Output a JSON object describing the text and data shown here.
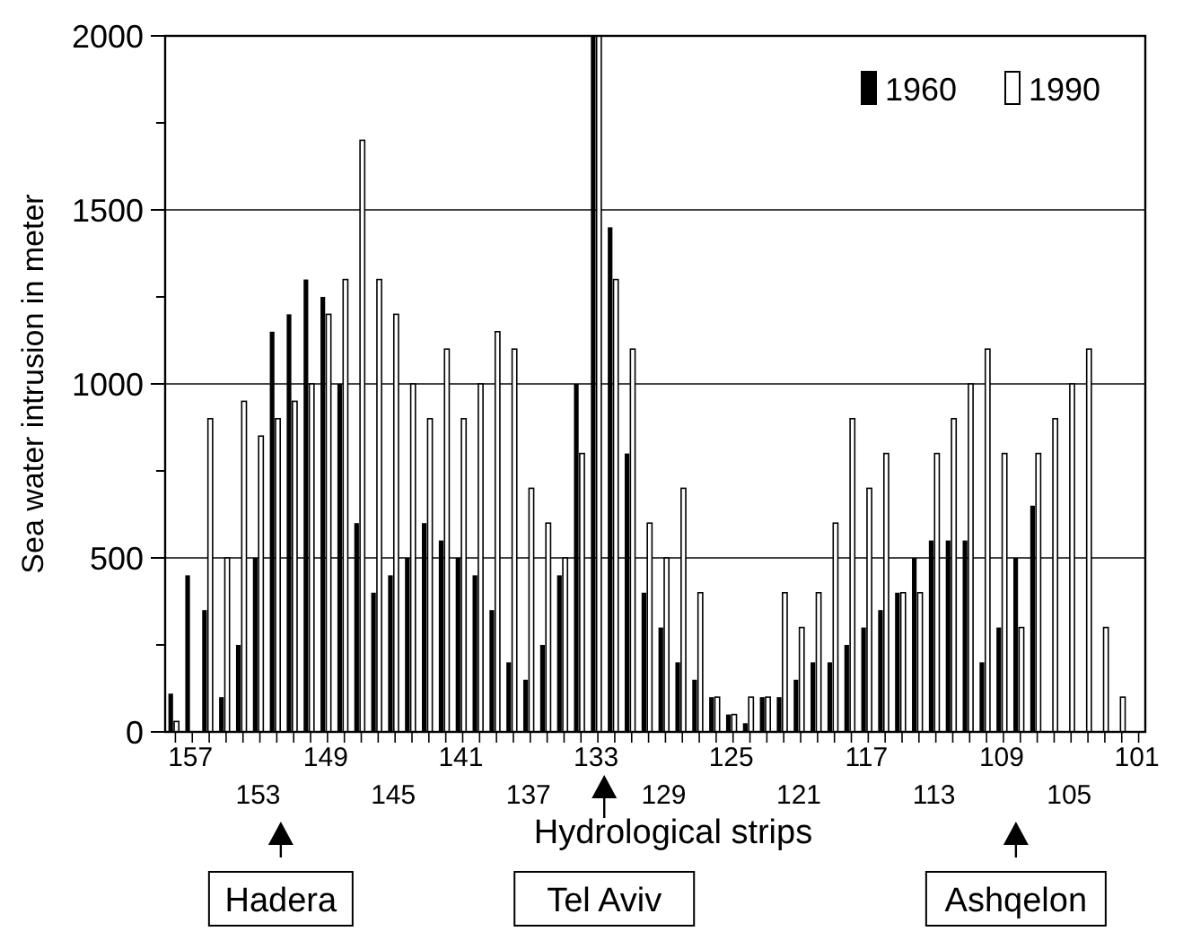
{
  "chart_data": {
    "type": "bar",
    "xlabel": "Hydrological strips",
    "ylabel": "Sea water intrusion in meter",
    "categories": [
      null,
      "157",
      null,
      null,
      null,
      "153",
      null,
      null,
      null,
      "149",
      null,
      null,
      null,
      "145",
      null,
      null,
      null,
      "141",
      null,
      null,
      null,
      "137",
      null,
      null,
      null,
      "133",
      null,
      null,
      null,
      "129",
      null,
      null,
      null,
      "125",
      null,
      null,
      null,
      "121",
      null,
      null,
      null,
      "117",
      null,
      null,
      null,
      "113",
      null,
      null,
      null,
      "109",
      null,
      null,
      null,
      "105",
      null,
      null,
      null,
      "101"
    ],
    "series": [
      {
        "name": "1960",
        "color": "#000000",
        "values": [
          110,
          450,
          350,
          100,
          250,
          500,
          1150,
          1200,
          1300,
          1250,
          1000,
          600,
          400,
          450,
          500,
          600,
          550,
          500,
          450,
          350,
          200,
          150,
          250,
          450,
          1000,
          2000,
          1450,
          800,
          400,
          300,
          200,
          150,
          100,
          50,
          25,
          100,
          100,
          150,
          200,
          200,
          250,
          300,
          350,
          400,
          500,
          550,
          550,
          550,
          200,
          300,
          500,
          650,
          null,
          null,
          null,
          null,
          null,
          null
        ]
      },
      {
        "name": "1990",
        "color": "#ffffff",
        "values": [
          30,
          null,
          900,
          500,
          950,
          850,
          900,
          950,
          1000,
          1200,
          1300,
          1700,
          1300,
          1200,
          1000,
          900,
          1100,
          900,
          1000,
          1150,
          1100,
          700,
          600,
          500,
          800,
          2000,
          1300,
          1100,
          600,
          500,
          700,
          400,
          100,
          50,
          100,
          100,
          400,
          300,
          400,
          600,
          900,
          700,
          800,
          400,
          400,
          800,
          900,
          1000,
          1100,
          800,
          300,
          800,
          900,
          1000,
          1100,
          300,
          100,
          null
        ]
      }
    ],
    "ylim": [
      0,
      2000
    ],
    "yticks": [
      0,
      {
        "value": 250,
        "label": null
      },
      500,
      {
        "value": 750,
        "label": null
      },
      1000,
      {
        "value": 1250,
        "label": null
      },
      1500,
      {
        "value": 1750,
        "label": null
      },
      2000
    ],
    "grid": "y",
    "legend": "top right",
    "annotations": [
      "Hadera",
      "Tel Aviv",
      "Ashqelon"
    ]
  }
}
